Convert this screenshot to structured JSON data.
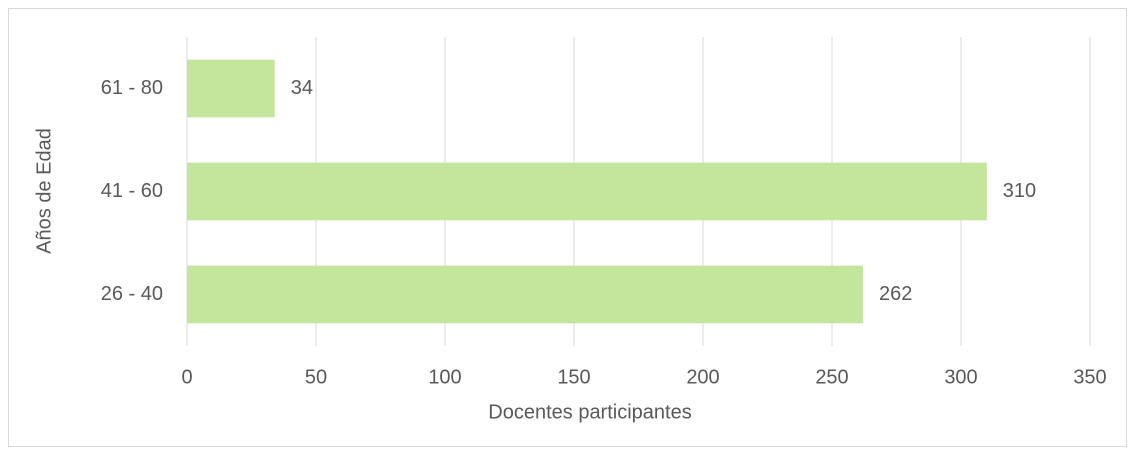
{
  "chart_data": {
    "type": "hbar",
    "xlabel": "Docentes participantes",
    "ylabel": "Años de Edad",
    "categories": [
      "26 - 40",
      "41 - 60",
      "61 - 80"
    ],
    "values": [
      262,
      310,
      34
    ],
    "color": "#c3e59c",
    "xlim": [
      0,
      350
    ],
    "xticks": [
      0,
      50,
      100,
      150,
      200,
      250,
      300,
      350
    ],
    "grid": true
  }
}
